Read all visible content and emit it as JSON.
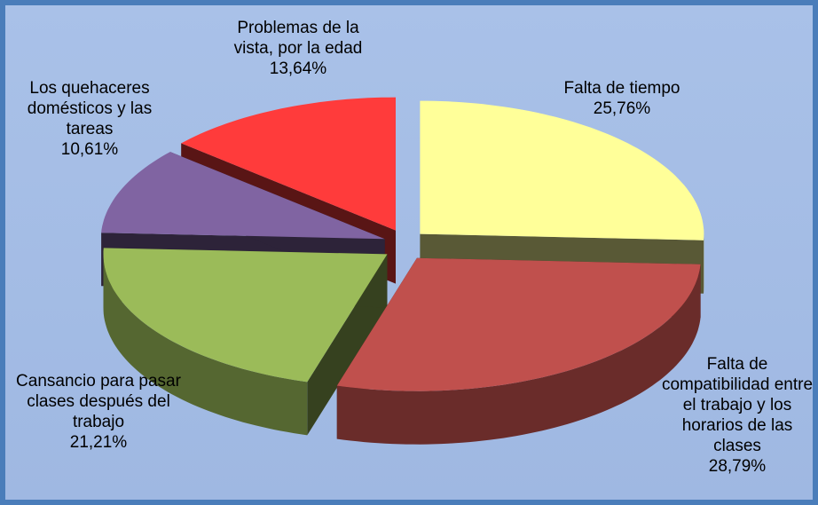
{
  "chart_data": {
    "type": "pie",
    "categories": [
      "Falta de tiempo",
      "Falta de compatibilidad entre el trabajo y los horarios de las clases",
      "Cansancio para pasar clases después del trabajo",
      "Los quehaceres domésticos y las tareas",
      "Problemas de la vista, por la edad"
    ],
    "values": [
      25.76,
      28.79,
      21.21,
      10.61,
      13.64
    ],
    "value_labels": [
      "25,76%",
      "28,79%",
      "21,21%",
      "10,61%",
      "13,64%"
    ],
    "colors": [
      "#ffff99",
      "#c0504d",
      "#9bbb59",
      "#8064a2",
      "#ff3b3b"
    ]
  }
}
